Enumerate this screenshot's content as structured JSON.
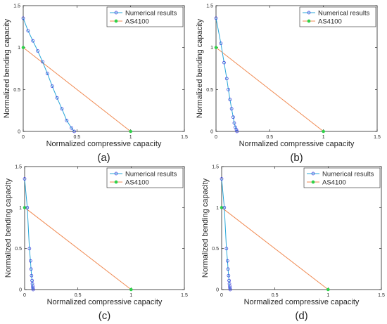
{
  "figure": {
    "panel_labels": [
      "(a)",
      "(b)",
      "(c)",
      "(d)"
    ]
  },
  "colors": {
    "numerical_line": "#2aa7d8",
    "numerical_marker": "#2b2fd9",
    "as4100_line": "#f08a52",
    "as4100_marker": "#2fd24a"
  },
  "chart_data": [
    {
      "type": "line",
      "xlabel": "Normalized compressive capacity",
      "ylabel": "Normalized bending capacity",
      "xlim": [
        0,
        1.5
      ],
      "ylim": [
        0,
        1.5
      ],
      "xticks": [
        0,
        0.5,
        1,
        1.5
      ],
      "yticks": [
        0,
        0.5,
        1,
        1.5
      ],
      "xtick_labels": [
        "0",
        "0.5",
        "1",
        "1.5"
      ],
      "ytick_labels": [
        "0",
        "0.5",
        "1",
        "1.5"
      ],
      "grid": false,
      "legend_position": "top-right",
      "series": [
        {
          "name": "Numerical results",
          "x": [
            0,
            0.045,
            0.09,
            0.135,
            0.18,
            0.225,
            0.27,
            0.315,
            0.36,
            0.405,
            0.45,
            0.475
          ],
          "y": [
            1.35,
            1.2,
            1.08,
            0.96,
            0.83,
            0.69,
            0.54,
            0.4,
            0.27,
            0.13,
            0.04,
            0
          ]
        },
        {
          "name": "AS4100",
          "x": [
            0,
            1
          ],
          "y": [
            1,
            0
          ]
        }
      ]
    },
    {
      "type": "line",
      "xlabel": "Normalized compressive capacity",
      "ylabel": "Normalized bending capacity",
      "xlim": [
        0,
        1.5
      ],
      "ylim": [
        0,
        1.5
      ],
      "xticks": [
        0,
        0.5,
        1,
        1.5
      ],
      "yticks": [
        0,
        0.5,
        1,
        1.5
      ],
      "xtick_labels": [
        "0",
        "0.5",
        "1",
        "1.5"
      ],
      "ytick_labels": [
        "0",
        "0.5",
        "1",
        "1.5"
      ],
      "grid": false,
      "legend_position": "top-right",
      "series": [
        {
          "name": "Numerical results",
          "x": [
            0,
            0.045,
            0.075,
            0.1,
            0.115,
            0.13,
            0.145,
            0.16,
            0.17,
            0.18,
            0.19,
            0.195
          ],
          "y": [
            1.35,
            1.05,
            0.82,
            0.63,
            0.5,
            0.38,
            0.27,
            0.17,
            0.1,
            0.05,
            0.02,
            0
          ]
        },
        {
          "name": "AS4100",
          "x": [
            0,
            1
          ],
          "y": [
            1,
            0
          ]
        }
      ]
    },
    {
      "type": "line",
      "xlabel": "Normalized compressive capacity",
      "ylabel": "Normalized bending capacity",
      "xlim": [
        0,
        1.5
      ],
      "ylim": [
        0,
        1.5
      ],
      "xticks": [
        0,
        0.5,
        1,
        1.5
      ],
      "yticks": [
        0,
        0.5,
        1,
        1.5
      ],
      "xtick_labels": [
        "0",
        "0.5",
        "1",
        "1.5"
      ],
      "ytick_labels": [
        "0",
        "0.5",
        "1",
        "1.5"
      ],
      "grid": false,
      "legend_position": "top-right",
      "series": [
        {
          "name": "Numerical results",
          "x": [
            0,
            0.025,
            0.045,
            0.055,
            0.06,
            0.065,
            0.07,
            0.073,
            0.076,
            0.078,
            0.08
          ],
          "y": [
            1.35,
            1.0,
            0.5,
            0.35,
            0.25,
            0.17,
            0.11,
            0.07,
            0.04,
            0.02,
            0
          ]
        },
        {
          "name": "AS4100",
          "x": [
            0,
            1
          ],
          "y": [
            1,
            0
          ]
        }
      ]
    },
    {
      "type": "line",
      "xlabel": "Normalized compressive capacity",
      "ylabel": "Normalized bending capacity",
      "xlim": [
        0,
        1.5
      ],
      "ylim": [
        0,
        1.5
      ],
      "xticks": [
        0,
        0.5,
        1,
        1.5
      ],
      "yticks": [
        0,
        0.5,
        1,
        1.5
      ],
      "xtick_labels": [
        "0",
        "0.5",
        "1",
        "1.5"
      ],
      "ytick_labels": [
        "0",
        "0.5",
        "1",
        "1.5"
      ],
      "grid": false,
      "legend_position": "top-right",
      "series": [
        {
          "name": "Numerical results",
          "x": [
            0,
            0.025,
            0.045,
            0.055,
            0.06,
            0.065,
            0.07,
            0.073,
            0.076,
            0.078,
            0.08
          ],
          "y": [
            1.35,
            1.0,
            0.5,
            0.35,
            0.25,
            0.17,
            0.11,
            0.07,
            0.04,
            0.02,
            0
          ]
        },
        {
          "name": "AS4100",
          "x": [
            0,
            1
          ],
          "y": [
            1,
            0
          ]
        }
      ]
    }
  ]
}
